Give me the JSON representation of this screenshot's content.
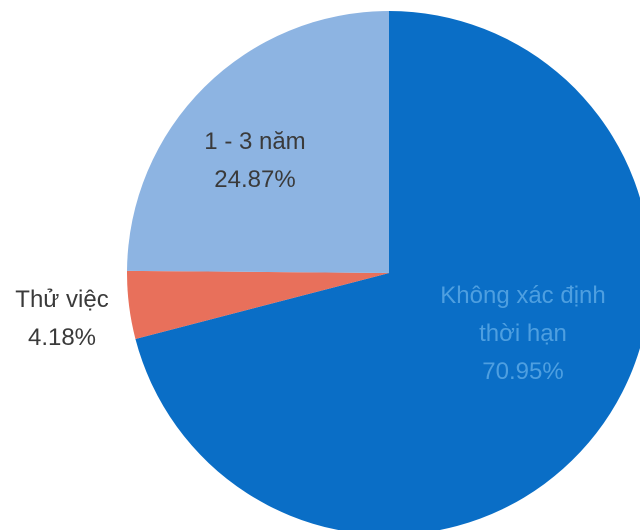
{
  "chart_data": {
    "type": "pie",
    "title": "",
    "legend": "none",
    "slices": [
      {
        "label_lines": [
          "Không xác định",
          "thời hạn"
        ],
        "value_label": "70.95%",
        "value": 70.95,
        "color": "#0a6ec6",
        "text_color": "#4e9fe0"
      },
      {
        "label_lines": [
          "Thử việc"
        ],
        "value_label": "4.18%",
        "value": 4.18,
        "color": "#e8705b",
        "text_color": "#3a3a3a"
      },
      {
        "label_lines": [
          "1 - 3 năm"
        ],
        "value_label": "24.87%",
        "value": 24.87,
        "color": "#8db4e2",
        "text_color": "#3a3a3a"
      }
    ]
  }
}
